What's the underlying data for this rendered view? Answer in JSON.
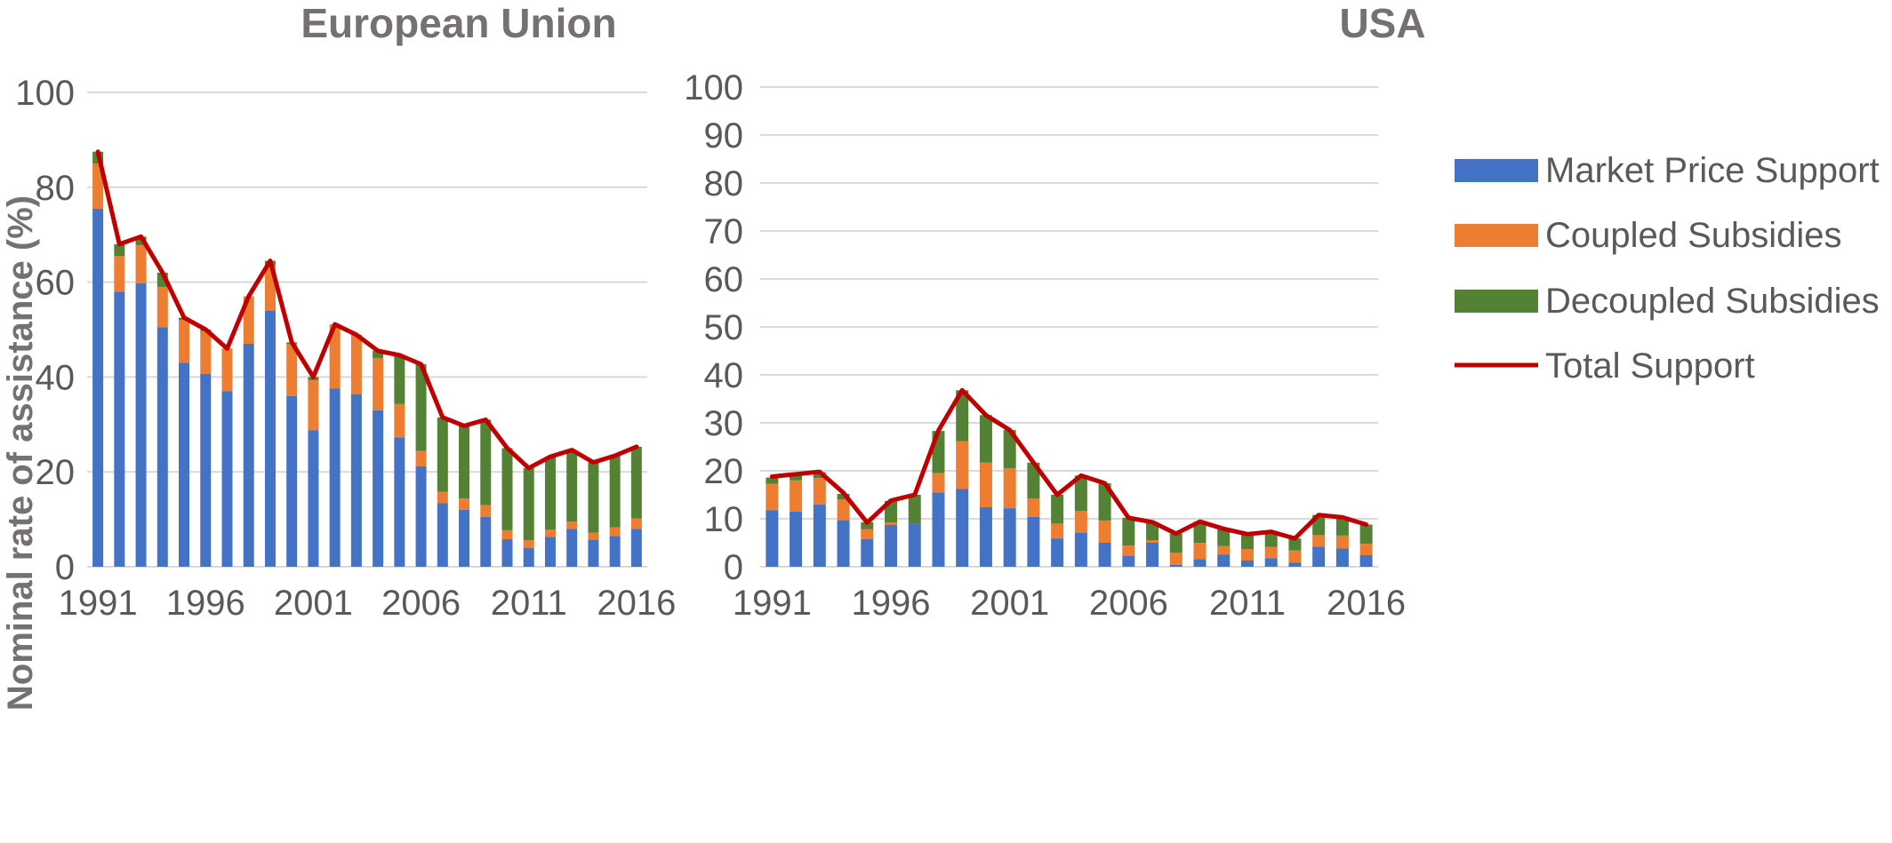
{
  "colors": {
    "market_price_support": "#4472c4",
    "coupled_subsidies": "#ed7d31",
    "decoupled_subsidies": "#548235",
    "total_support": "#c00000",
    "gridline": "#d9d9d9",
    "title": "#767171",
    "tick_text": "#595959"
  },
  "chart_data": [
    {
      "type": "bar",
      "stacked": true,
      "title": "European Union",
      "ylabel": "Nominal rate of assistance (%)",
      "xlabel": "",
      "ylim": [
        0,
        100
      ],
      "yticks": [
        0,
        20,
        40,
        60,
        80,
        100
      ],
      "x": [
        1991,
        1992,
        1993,
        1994,
        1995,
        1996,
        1997,
        1998,
        1999,
        2000,
        2001,
        2002,
        2003,
        2004,
        2005,
        2006,
        2007,
        2008,
        2009,
        2010,
        2011,
        2012,
        2013,
        2014,
        2015,
        2016
      ],
      "xtick_labels": [
        "1991",
        "1996",
        "2001",
        "2006",
        "2011",
        "2016"
      ],
      "grid": true,
      "series": [
        {
          "name": "Market Price Support",
          "values": [
            75.5,
            58,
            59.8,
            50.5,
            43,
            40.7,
            37,
            47,
            54,
            36,
            28.8,
            37.6,
            36.4,
            33,
            27.3,
            21.2,
            13.4,
            12,
            10.5,
            5.8,
            4,
            6.3,
            8,
            5.7,
            6.5,
            8
          ]
        },
        {
          "name": "Coupled Subsidies",
          "values": [
            9.5,
            7.5,
            8,
            8.5,
            9,
            9,
            9,
            10,
            9.5,
            11,
            10.5,
            13.5,
            12.5,
            11,
            7,
            3.2,
            2.4,
            2.4,
            2.5,
            1.9,
            1.6,
            1.5,
            1.5,
            1.5,
            1.8,
            2.2
          ]
        },
        {
          "name": "Decoupled Subsidies",
          "values": [
            2.5,
            2.5,
            1.8,
            3,
            0.5,
            0.3,
            0,
            0,
            1,
            0.3,
            0.7,
            0,
            0,
            1.5,
            10.3,
            18.3,
            15.7,
            15.3,
            18,
            17.3,
            15.2,
            15.4,
            15.1,
            14.8,
            15.1,
            15.1
          ]
        },
        {
          "name": "Total Support",
          "type": "line",
          "values": [
            87.5,
            68,
            69.6,
            62,
            52.5,
            50,
            46,
            57,
            64.5,
            47.3,
            40,
            51.1,
            48.9,
            45.5,
            44.6,
            42.7,
            31.5,
            29.7,
            31,
            25,
            20.8,
            23.2,
            24.6,
            22,
            23.4,
            25.3
          ]
        }
      ]
    },
    {
      "type": "bar",
      "stacked": true,
      "title": "USA",
      "ylabel": "",
      "xlabel": "",
      "ylim": [
        0,
        100
      ],
      "yticks": [
        0,
        10,
        20,
        30,
        40,
        50,
        60,
        70,
        80,
        90,
        100
      ],
      "x": [
        1991,
        1992,
        1993,
        1994,
        1995,
        1996,
        1997,
        1998,
        1999,
        2000,
        2001,
        2002,
        2003,
        2004,
        2005,
        2006,
        2007,
        2008,
        2009,
        2010,
        2011,
        2012,
        2013,
        2014,
        2015,
        2016
      ],
      "xtick_labels": [
        "1991",
        "1996",
        "2001",
        "2006",
        "2011",
        "2016"
      ],
      "grid": true,
      "legend": "top-right",
      "series": [
        {
          "name": "Market Price Support",
          "values": [
            11.8,
            11.5,
            13,
            9.7,
            5.8,
            8.7,
            9,
            15.5,
            16.2,
            12.4,
            12.2,
            10.4,
            5.9,
            7.1,
            5,
            2.3,
            5,
            0.4,
            1.6,
            2.5,
            1.3,
            1.8,
            0.9,
            4.2,
            3.8,
            2.4
          ]
        },
        {
          "name": "Coupled Subsidies",
          "values": [
            5.5,
            6.5,
            5.5,
            4.3,
            2,
            0.5,
            0,
            4,
            10,
            9.3,
            8.3,
            3.8,
            3.1,
            4.5,
            4.6,
            2.1,
            0.5,
            2.5,
            3.4,
            1.8,
            2.4,
            2.3,
            2.5,
            2.4,
            2.7,
            2.4
          ]
        },
        {
          "name": "Decoupled Subsidies",
          "values": [
            1.3,
            1,
            1.2,
            1.2,
            1.5,
            4.5,
            6,
            8.8,
            10.6,
            9.9,
            8,
            7.5,
            6,
            7.4,
            7.8,
            5.8,
            3.8,
            4,
            4.4,
            3.6,
            3.1,
            3.2,
            2.5,
            4.2,
            3.8,
            4
          ]
        },
        {
          "name": "Total Support",
          "type": "line",
          "values": [
            18.8,
            19.3,
            19.8,
            15.4,
            9.2,
            13.8,
            15,
            28.4,
            36.8,
            31.6,
            28.5,
            21.7,
            15,
            19,
            17.4,
            10.2,
            9.3,
            6.9,
            9.4,
            7.9,
            6.8,
            7.3,
            5.9,
            10.8,
            10.3,
            8.8
          ]
        }
      ]
    }
  ]
}
